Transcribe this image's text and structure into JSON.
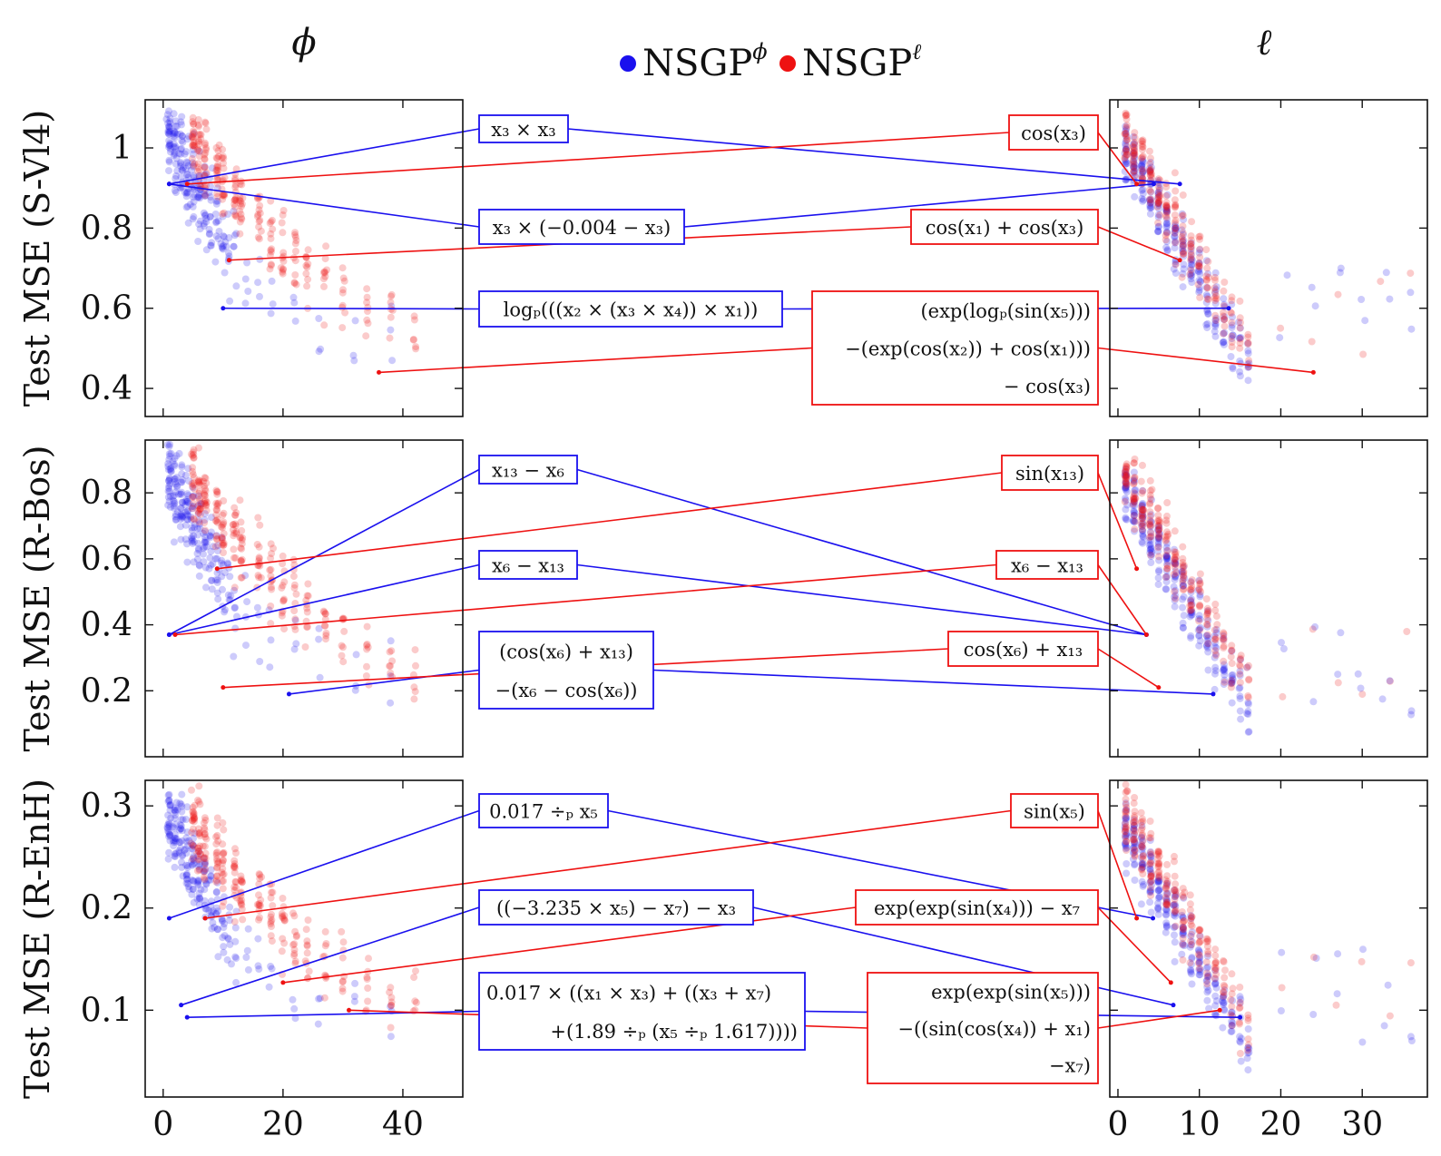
{
  "columns": {
    "left": "ϕ",
    "right": "ℓ"
  },
  "legend": [
    {
      "label": "NSGP",
      "sup": "ϕ",
      "color": "#1a10ee"
    },
    {
      "label": "NSGP",
      "sup": "ℓ",
      "color": "#ee1111"
    }
  ],
  "colors": {
    "blue": "#1a10ee",
    "red": "#ee1111",
    "edge": "#111111"
  },
  "chart_data": [
    {
      "type": "scatter",
      "ylabel": "Test MSE (S-Vl4)",
      "ylim": [
        0.33,
        1.12
      ],
      "yticks": [
        0.4,
        0.6,
        0.8,
        1
      ],
      "ytick_labels": [
        "0.4",
        "0.6",
        "0.8",
        "1"
      ],
      "left_xlim": [
        -3,
        50
      ],
      "right_xlim": [
        -1,
        38
      ],
      "annotations": [
        {
          "color": "blue",
          "lines": [
            "x₃ × x₃"
          ],
          "left": [
            1,
            0.91
          ],
          "right": [
            7.6,
            0.91
          ]
        },
        {
          "color": "blue",
          "lines": [
            "x₃ × (−0.004 − x₃)"
          ],
          "left": [
            1,
            0.91
          ],
          "right": [
            4.4,
            0.91
          ]
        },
        {
          "color": "blue",
          "lines": [
            "logₚ(((x₂ × (x₃ × x₄)) × x₁))"
          ],
          "left": [
            10,
            0.6
          ],
          "right": [
            13.6,
            0.6
          ]
        },
        {
          "color": "red",
          "lines": [
            "cos(x₃)"
          ],
          "left": [
            4,
            0.91
          ],
          "right": [
            2.3,
            0.91
          ]
        },
        {
          "color": "red",
          "lines": [
            "cos(x₁) + cos(x₃)"
          ],
          "left": [
            11,
            0.72
          ],
          "right": [
            7.6,
            0.72
          ]
        },
        {
          "color": "red",
          "lines": [
            "(exp(logₚ(sin(x₅)))",
            "−(exp(cos(x₂)) + cos(x₁)))",
            "− cos(x₃)"
          ],
          "left": [
            36,
            0.44
          ],
          "right": [
            24,
            0.44
          ]
        }
      ]
    },
    {
      "type": "scatter",
      "ylabel": "Test MSE (R-Bos)",
      "ylim": [
        0.0,
        0.96
      ],
      "yticks": [
        0.2,
        0.4,
        0.6,
        0.8
      ],
      "ytick_labels": [
        "0.2",
        "0.4",
        "0.6",
        "0.8"
      ],
      "left_xlim": [
        -3,
        50
      ],
      "right_xlim": [
        -1,
        38
      ],
      "annotations": [
        {
          "color": "blue",
          "lines": [
            "x₁₃ − x₆"
          ],
          "left": [
            1,
            0.37
          ],
          "right": [
            3.5,
            0.37
          ]
        },
        {
          "color": "blue",
          "lines": [
            "x₆ − x₁₃"
          ],
          "left": [
            1,
            0.37
          ],
          "right": [
            3.5,
            0.37
          ]
        },
        {
          "color": "blue",
          "lines": [
            "(cos(x₆) + x₁₃)",
            "−(x₆ − cos(x₆))"
          ],
          "left": [
            21,
            0.19
          ],
          "right": [
            11.7,
            0.19
          ]
        },
        {
          "color": "red",
          "lines": [
            "sin(x₁₃)"
          ],
          "left": [
            9,
            0.57
          ],
          "right": [
            2.3,
            0.57
          ]
        },
        {
          "color": "red",
          "lines": [
            "x₆ − x₁₃"
          ],
          "left": [
            2,
            0.37
          ],
          "right": [
            3.5,
            0.37
          ]
        },
        {
          "color": "red",
          "lines": [
            "cos(x₆) + x₁₃"
          ],
          "left": [
            10,
            0.21
          ],
          "right": [
            5,
            0.21
          ]
        }
      ]
    },
    {
      "type": "scatter",
      "ylabel": "Test MSE (R-EnH)",
      "ylim": [
        0.015,
        0.325
      ],
      "yticks": [
        0.1,
        0.2,
        0.3
      ],
      "ytick_labels": [
        "0.1",
        "0.2",
        "0.3"
      ],
      "left_xlim": [
        -3,
        50
      ],
      "right_xlim": [
        -1,
        38
      ],
      "annotations": [
        {
          "color": "blue",
          "lines": [
            "0.017 ÷ₚ x₅"
          ],
          "left": [
            1,
            0.19
          ],
          "right": [
            4.3,
            0.19
          ]
        },
        {
          "color": "blue",
          "lines": [
            "((−3.235 × x₅) − x₇) − x₃"
          ],
          "left": [
            3,
            0.105
          ],
          "right": [
            6.8,
            0.105
          ]
        },
        {
          "color": "blue",
          "lines": [
            "0.017 × ((x₁ × x₃) + ((x₃ + x₇)",
            "+(1.89 ÷ₚ (x₅ ÷ₚ 1.617))))"
          ],
          "left": [
            4,
            0.093
          ],
          "right": [
            15,
            0.093
          ]
        },
        {
          "color": "red",
          "lines": [
            "sin(x₅)"
          ],
          "left": [
            7,
            0.19
          ],
          "right": [
            2.3,
            0.19
          ]
        },
        {
          "color": "red",
          "lines": [
            "exp(exp(sin(x₄))) − x₇"
          ],
          "left": [
            20,
            0.127
          ],
          "right": [
            6.5,
            0.127
          ]
        },
        {
          "color": "red",
          "lines": [
            "exp(exp(sin(x₅)))",
            "−((sin(cos(x₄)) + x₁)",
            "−x₇)"
          ],
          "left": [
            31,
            0.1
          ],
          "right": [
            12.5,
            0.1
          ]
        }
      ]
    }
  ],
  "bottom_ticks": {
    "left": {
      "values": [
        0,
        20,
        40
      ],
      "labels": [
        "0",
        "20",
        "40"
      ]
    },
    "right": {
      "values": [
        0,
        10,
        20,
        30
      ],
      "labels": [
        "0",
        "10",
        "20",
        "30"
      ]
    }
  }
}
